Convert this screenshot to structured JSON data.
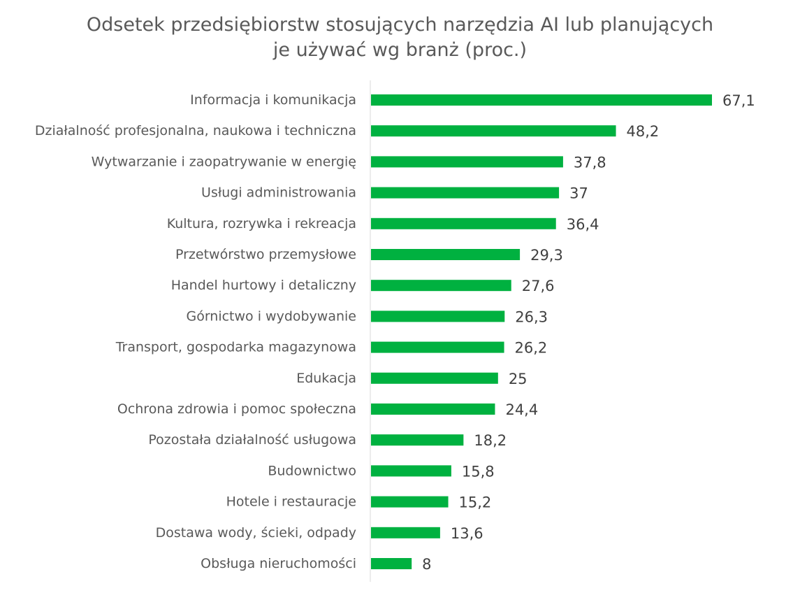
{
  "chart_data": {
    "type": "bar",
    "orientation": "horizontal",
    "title_lines": [
      "Odsetek przedsiębiorstw stosujących narzędzia AI lub planujących",
      "je używać wg branż (proc.)"
    ],
    "categories": [
      "Informacja i komunikacja",
      "Działalność profesjonalna, naukowa i techniczna",
      "Wytwarzanie i zaopatrywanie w energię",
      "Usługi administrowania",
      "Kultura, rozrywka i rekreacja",
      "Przetwórstwo przemysłowe",
      "Handel hurtowy i detaliczny",
      "Górnictwo i wydobywanie",
      "Transport, gospodarka magazynowa",
      "Edukacja",
      "Ochrona zdrowia i pomoc społeczna",
      "Pozostała działalność usługowa",
      "Budownictwo",
      "Hotele i restauracje",
      "Dostawa wody, ścieki, odpady",
      "Obsługa nieruchomości"
    ],
    "values": [
      67.1,
      48.2,
      37.8,
      37,
      36.4,
      29.3,
      27.6,
      26.3,
      26.2,
      25,
      24.4,
      18.2,
      15.8,
      15.2,
      13.6,
      8
    ],
    "value_labels": [
      "67,1",
      "48,2",
      "37,8",
      "37",
      "36,4",
      "29,3",
      "27,6",
      "26,3",
      "26,2",
      "25",
      "24,4",
      "18,2",
      "15,8",
      "15,2",
      "13,6",
      "8"
    ],
    "xlim": [
      0,
      67.1
    ],
    "bar_color": "#00b140",
    "axis_color": "#d9d9d9",
    "grid": false,
    "legend": "none"
  }
}
